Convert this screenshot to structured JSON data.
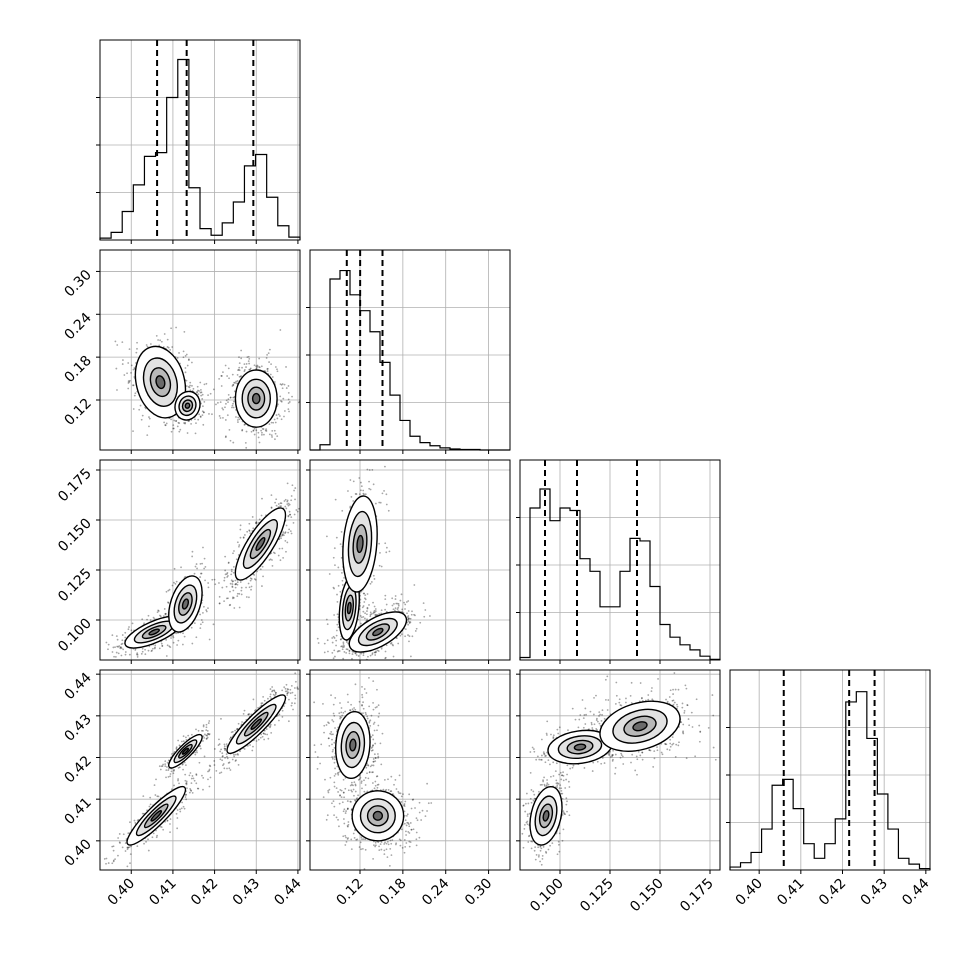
{
  "chart_data": {
    "type": "corner",
    "title": "",
    "parameters": [
      {
        "ticks": [
          "0.40",
          "0.41",
          "0.42",
          "0.43",
          "0.44"
        ],
        "tick_values": [
          0.4,
          0.41,
          0.42,
          0.43,
          0.44
        ],
        "range": [
          0.3925,
          0.4405
        ]
      },
      {
        "ticks": [
          "0.12",
          "0.18",
          "0.24",
          "0.30"
        ],
        "tick_values": [
          0.12,
          0.18,
          0.24,
          0.3
        ],
        "range": [
          0.05,
          0.33
        ]
      },
      {
        "ticks": [
          "0.100",
          "0.125",
          "0.150",
          "0.175"
        ],
        "tick_values": [
          0.1,
          0.125,
          0.15,
          0.175
        ],
        "range": [
          0.08,
          0.18
        ]
      },
      {
        "ticks": [
          "0.40",
          "0.41",
          "0.42",
          "0.43",
          "0.44"
        ],
        "tick_values": [
          0.4,
          0.41,
          0.42,
          0.43,
          0.44
        ],
        "range": [
          0.393,
          0.441
        ]
      }
    ],
    "grid": true,
    "histograms": [
      {
        "counts": [
          2,
          8,
          30,
          58,
          88,
          92,
          150,
          190,
          55,
          12,
          5,
          18,
          40,
          78,
          90,
          45,
          15,
          3
        ],
        "quantiles": [
          0.4062,
          0.4133,
          0.4293
        ],
        "ymax": 200
      },
      {
        "counts": [
          0,
          5,
          162,
          170,
          147,
          132,
          112,
          83,
          52,
          28,
          13,
          7,
          4,
          2,
          1,
          0.5,
          0.5,
          0,
          0,
          0
        ],
        "quantiles": [
          0.1015,
          0.1202,
          0.1515
        ],
        "ymax": 180
      },
      {
        "counts": [
          2,
          120,
          135,
          110,
          120,
          118,
          80,
          70,
          42,
          42,
          70,
          96,
          94,
          58,
          28,
          18,
          12,
          8,
          3,
          0.5
        ],
        "quantiles": [
          0.0925,
          0.1085,
          0.1385
        ],
        "ymax": 150
      },
      {
        "counts": [
          2,
          5,
          12,
          28,
          58,
          62,
          42,
          18,
          8,
          18,
          35,
          115,
          122,
          90,
          52,
          28,
          8,
          4,
          1
        ],
        "quantiles": [
          0.4059,
          0.4216,
          0.4277
        ],
        "ymax": 130
      }
    ],
    "scatter_modes": [
      {
        "row": 1,
        "col": 0,
        "modes": [
          {
            "cx": 0.407,
            "cy": 0.145,
            "sx": 0.003,
            "sy": 0.025,
            "rho": -0.2,
            "w": 0.28
          },
          {
            "cx": 0.4135,
            "cy": 0.112,
            "sx": 0.0015,
            "sy": 0.01,
            "rho": 0.1,
            "w": 0.22
          },
          {
            "cx": 0.43,
            "cy": 0.122,
            "sx": 0.0025,
            "sy": 0.02,
            "rho": 0.0,
            "w": 0.5
          }
        ]
      },
      {
        "row": 2,
        "col": 0,
        "modes": [
          {
            "cx": 0.4055,
            "cy": 0.094,
            "sx": 0.0035,
            "sy": 0.004,
            "rho": 0.7,
            "w": 0.3
          },
          {
            "cx": 0.413,
            "cy": 0.108,
            "sx": 0.002,
            "sy": 0.007,
            "rho": 0.4,
            "w": 0.22
          },
          {
            "cx": 0.431,
            "cy": 0.138,
            "sx": 0.003,
            "sy": 0.009,
            "rho": 0.8,
            "w": 0.48
          }
        ]
      },
      {
        "row": 2,
        "col": 1,
        "modes": [
          {
            "cx": 0.105,
            "cy": 0.106,
            "sx": 0.007,
            "sy": 0.008,
            "rho": 0.3,
            "w": 0.28
          },
          {
            "cx": 0.12,
            "cy": 0.138,
            "sx": 0.012,
            "sy": 0.012,
            "rho": 0.2,
            "w": 0.27
          },
          {
            "cx": 0.145,
            "cy": 0.094,
            "sx": 0.02,
            "sy": 0.005,
            "rho": 0.6,
            "w": 0.45
          }
        ]
      },
      {
        "row": 3,
        "col": 0,
        "modes": [
          {
            "cx": 0.406,
            "cy": 0.406,
            "sx": 0.0035,
            "sy": 0.0035,
            "rho": 0.9,
            "w": 0.3
          },
          {
            "cx": 0.413,
            "cy": 0.4215,
            "sx": 0.002,
            "sy": 0.002,
            "rho": 0.85,
            "w": 0.22
          },
          {
            "cx": 0.43,
            "cy": 0.428,
            "sx": 0.0035,
            "sy": 0.0035,
            "rho": 0.9,
            "w": 0.48
          }
        ]
      },
      {
        "row": 3,
        "col": 1,
        "modes": [
          {
            "cx": 0.11,
            "cy": 0.423,
            "sx": 0.012,
            "sy": 0.004,
            "rho": 0.1,
            "w": 0.5
          },
          {
            "cx": 0.145,
            "cy": 0.406,
            "sx": 0.018,
            "sy": 0.003,
            "rho": 0.0,
            "w": 0.5
          }
        ]
      },
      {
        "row": 3,
        "col": 2,
        "modes": [
          {
            "cx": 0.093,
            "cy": 0.406,
            "sx": 0.004,
            "sy": 0.0035,
            "rho": 0.3,
            "w": 0.3
          },
          {
            "cx": 0.11,
            "cy": 0.4225,
            "sx": 0.008,
            "sy": 0.002,
            "rho": 0.2,
            "w": 0.22
          },
          {
            "cx": 0.14,
            "cy": 0.4275,
            "sx": 0.01,
            "sy": 0.003,
            "rho": 0.3,
            "w": 0.48
          }
        ]
      }
    ]
  },
  "colors": {
    "background": "#ffffff",
    "axis": "#000000",
    "grid": "#b0b0b0",
    "points": "#000000",
    "quantile_line": "#000000"
  }
}
